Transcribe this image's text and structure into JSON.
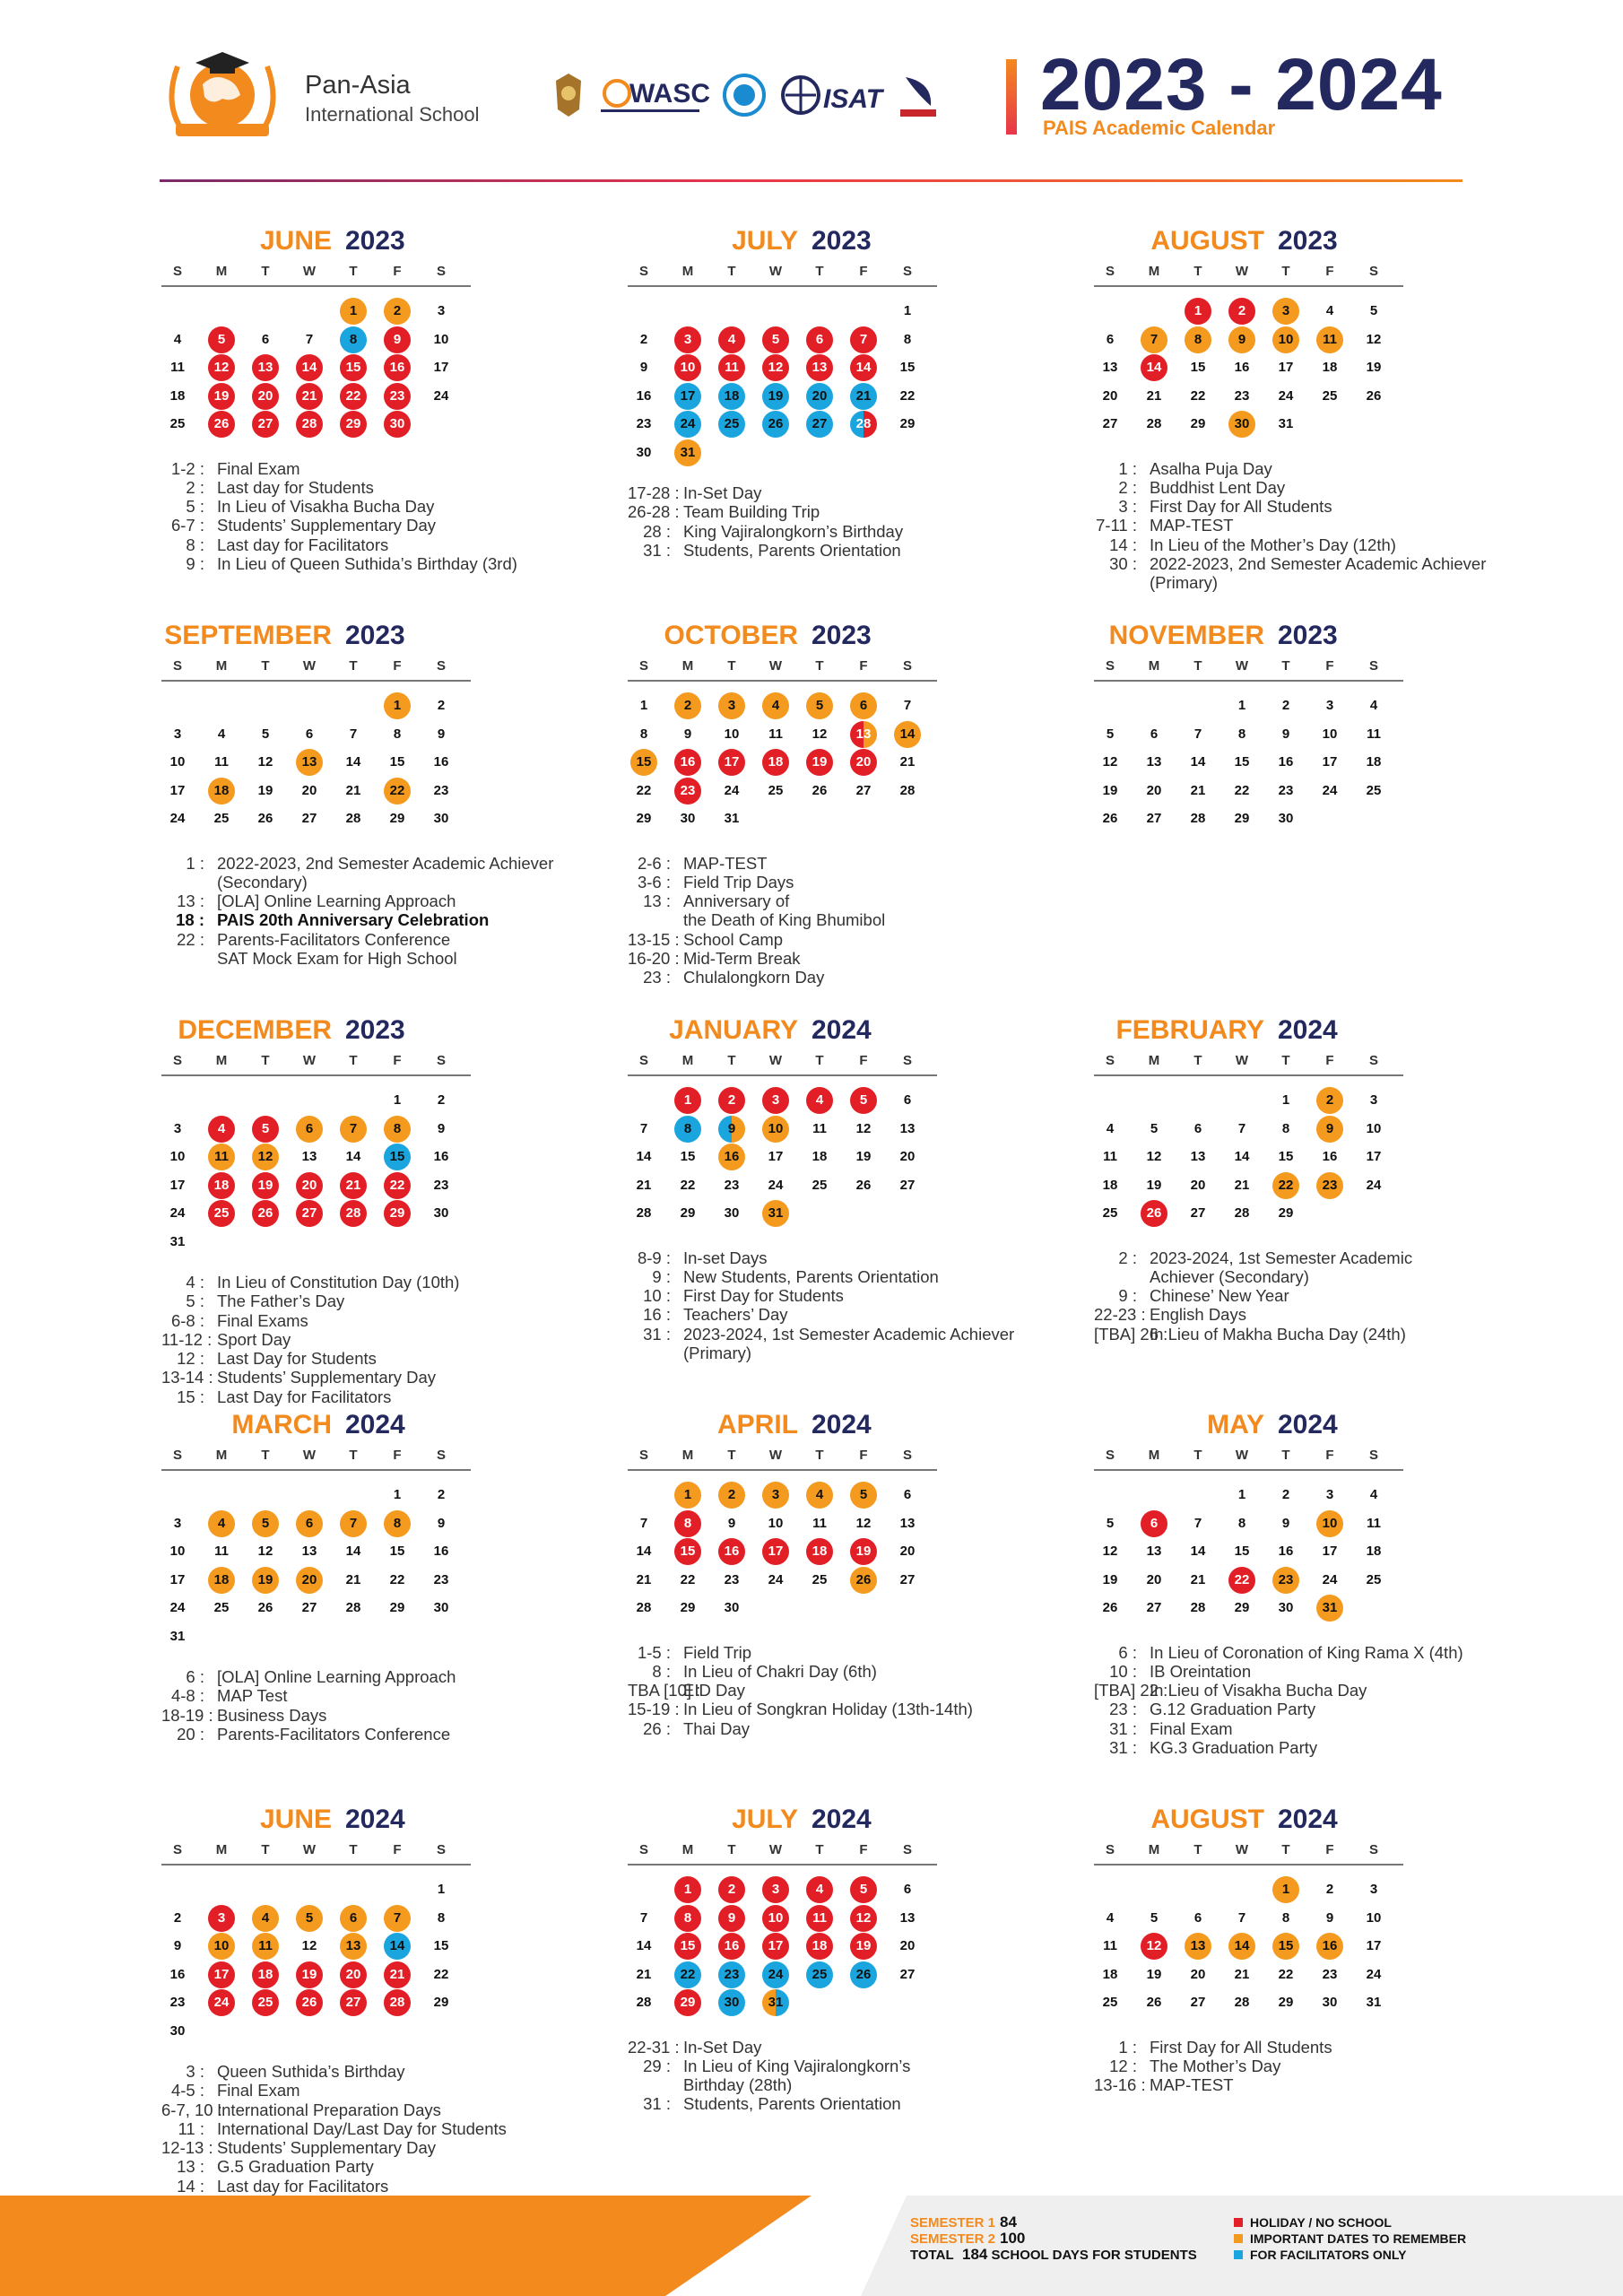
{
  "header": {
    "school_name_line1": "Pan-Asia",
    "school_name_line2": "International School",
    "logo_icon": "globe-with-mortarboard-and-laurel",
    "accreditation_labels": [
      "WASC",
      "ISAT"
    ],
    "title_year": "2023 - 2024",
    "subtitle": "PAIS Academic Calendar"
  },
  "weekday_labels": [
    "S",
    "M",
    "T",
    "W",
    "T",
    "F",
    "S"
  ],
  "colors": {
    "holiday": "#e21f26",
    "important": "#f49a1e",
    "facilitators": "#1aa5df",
    "navy": "#23285f",
    "orange": "#f28a1e"
  },
  "months": [
    {
      "name": "JUNE",
      "year": "2023",
      "start": 4,
      "days": 30,
      "six_rows": false,
      "marks": {
        "1": "o",
        "2": "o",
        "5": "r",
        "8": "b",
        "9": "r",
        "12": "r",
        "13": "r",
        "14": "r",
        "15": "r",
        "16": "r",
        "19": "r",
        "20": "r",
        "21": "r",
        "22": "r",
        "23": "r",
        "26": "r",
        "27": "r",
        "28": "r",
        "29": "r",
        "30": "r"
      },
      "notes": [
        {
          "d": "1-2 :",
          "t": "Final Exam"
        },
        {
          "d": "2 :",
          "t": "Last day for Students"
        },
        {
          "d": "5 :",
          "t": "In Lieu of Visakha Bucha Day"
        },
        {
          "d": "6-7 :",
          "t": "Students’ Supplementary Day"
        },
        {
          "d": "8 :",
          "t": "Last day for Facilitators"
        },
        {
          "d": "9 :",
          "t": "In Lieu of Queen Suthida’s Birthday (3rd)"
        }
      ]
    },
    {
      "name": "JULY",
      "year": "2023",
      "start": 6,
      "days": 31,
      "six_rows": true,
      "marks": {
        "3": "r",
        "4": "r",
        "5": "r",
        "6": "r",
        "7": "r",
        "10": "r",
        "11": "r",
        "12": "r",
        "13": "r",
        "14": "r",
        "17": "b",
        "18": "b",
        "19": "b",
        "20": "b",
        "21": "b",
        "24": "b",
        "25": "b",
        "26": "b",
        "27": "b",
        "28": "rb",
        "31": "o"
      },
      "notes": [
        {
          "d": "17-28 :",
          "t": "In-Set Day"
        },
        {
          "d": "26-28 :",
          "t": "Team Building Trip"
        },
        {
          "d": "28 :",
          "t": "King Vajiralongkorn’s Birthday"
        },
        {
          "d": "31 :",
          "t": "Students, Parents Orientation"
        }
      ]
    },
    {
      "name": "AUGUST",
      "year": "2023",
      "start": 2,
      "days": 31,
      "six_rows": false,
      "marks": {
        "1": "r",
        "2": "r",
        "3": "o",
        "7": "o",
        "8": "o",
        "9": "o",
        "10": "o",
        "11": "o",
        "14": "r",
        "30": "o"
      },
      "notes": [
        {
          "d": "1 :",
          "t": "Asalha Puja Day"
        },
        {
          "d": "2 :",
          "t": "Buddhist Lent Day"
        },
        {
          "d": "3 :",
          "t": "First Day for All Students"
        },
        {
          "d": "7-11 :",
          "t": "MAP-TEST"
        },
        {
          "d": "14 :",
          "t": "In Lieu of the Mother’s Day (12th)"
        },
        {
          "d": "30 :",
          "t": "2022-2023, 2nd Semester Academic Achiever"
        },
        {
          "d": "",
          "t": "(Primary)"
        }
      ]
    },
    {
      "name": "SEPTEMBER",
      "year": "2023",
      "start": 5,
      "days": 30,
      "six_rows": false,
      "marks": {
        "1": "o",
        "13": "o",
        "18": "o",
        "22": "o"
      },
      "notes": [
        {
          "d": "1 :",
          "t": "2022-2023, 2nd Semester Academic Achiever"
        },
        {
          "d": "",
          "t": "(Secondary)"
        },
        {
          "d": "13 :",
          "t": "[OLA] Online Learning Approach"
        },
        {
          "d": "18 :",
          "t": "PAIS 20th Anniversary Celebration",
          "b": true
        },
        {
          "d": "22 :",
          "t": "Parents-Facilitators Conference"
        },
        {
          "d": "",
          "t": "SAT Mock Exam for High School"
        }
      ]
    },
    {
      "name": "OCTOBER",
      "year": "2023",
      "start": 0,
      "days": 31,
      "six_rows": false,
      "marks": {
        "2": "o",
        "3": "o",
        "4": "o",
        "5": "o",
        "6": "o",
        "13": "ro",
        "14": "o",
        "15": "o",
        "16": "r",
        "17": "r",
        "18": "r",
        "19": "r",
        "20": "r",
        "23": "r"
      },
      "notes": [
        {
          "d": "2-6 :",
          "t": "MAP-TEST"
        },
        {
          "d": "3-6 :",
          "t": "Field Trip Days"
        },
        {
          "d": "13 :",
          "t": "Anniversary of"
        },
        {
          "d": "",
          "t": "the Death of King Bhumibol"
        },
        {
          "d": "13-15 :",
          "t": "School Camp"
        },
        {
          "d": "16-20 :",
          "t": "Mid-Term Break"
        },
        {
          "d": "23 :",
          "t": "Chulalongkorn Day"
        }
      ]
    },
    {
      "name": "NOVEMBER",
      "year": "2023",
      "start": 3,
      "days": 30,
      "six_rows": false,
      "marks": {},
      "notes": []
    },
    {
      "name": "DECEMBER",
      "year": "2023",
      "start": 5,
      "days": 31,
      "six_rows": true,
      "marks": {
        "4": "r",
        "5": "r",
        "6": "o",
        "7": "o",
        "8": "o",
        "11": "o",
        "12": "o",
        "15": "b",
        "18": "r",
        "19": "r",
        "20": "r",
        "21": "r",
        "22": "r",
        "25": "r",
        "26": "r",
        "27": "r",
        "28": "r",
        "29": "r"
      },
      "notes": [
        {
          "d": "4 :",
          "t": "In Lieu of Constitution Day (10th)"
        },
        {
          "d": "5 :",
          "t": "The Father’s Day"
        },
        {
          "d": "6-8 :",
          "t": "Final Exams"
        },
        {
          "d": "11-12 :",
          "t": "Sport Day"
        },
        {
          "d": "12 :",
          "t": "Last Day for Students"
        },
        {
          "d": "13-14 :",
          "t": "Students’ Supplementary Day"
        },
        {
          "d": "15 :",
          "t": "Last Day for Facilitators"
        }
      ]
    },
    {
      "name": "JANUARY",
      "year": "2024",
      "start": 1,
      "days": 31,
      "six_rows": false,
      "marks": {
        "1": "r",
        "2": "r",
        "3": "r",
        "4": "r",
        "5": "r",
        "8": "b",
        "9": "bo",
        "10": "o",
        "16": "o",
        "31": "o"
      },
      "notes": [
        {
          "d": "8-9 :",
          "t": "In-set Days"
        },
        {
          "d": "9 :",
          "t": "New Students, Parents Orientation"
        },
        {
          "d": "10 :",
          "t": "First Day for Students"
        },
        {
          "d": "16 :",
          "t": "Teachers’ Day"
        },
        {
          "d": "31 :",
          "t": "2023-2024, 1st Semester Academic Achiever"
        },
        {
          "d": "",
          "t": "(Primary)"
        }
      ]
    },
    {
      "name": "FEBRUARY",
      "year": "2024",
      "start": 4,
      "days": 29,
      "six_rows": false,
      "marks": {
        "2": "o",
        "9": "o",
        "22": "o",
        "23": "o",
        "26": "r"
      },
      "notes": [
        {
          "d": "2 :",
          "t": "2023-2024, 1st Semester Academic"
        },
        {
          "d": "",
          "t": "Achiever (Secondary)"
        },
        {
          "d": "9 :",
          "t": "Chinese’ New Year"
        },
        {
          "d": "22-23 :",
          "t": "English Days"
        },
        {
          "d": "[TBA] 26 :",
          "t": "In Lieu of Makha Bucha Day (24th)"
        }
      ]
    },
    {
      "name": "MARCH",
      "year": "2024",
      "start": 5,
      "days": 31,
      "six_rows": true,
      "marks": {
        "4": "o",
        "5": "o",
        "6": "o",
        "7": "o",
        "8": "o",
        "18": "o",
        "19": "o",
        "20": "o"
      },
      "notes": [
        {
          "d": "6 :",
          "t": "[OLA] Online Learning Approach"
        },
        {
          "d": "4-8 :",
          "t": "MAP Test"
        },
        {
          "d": "18-19 :",
          "t": "Business Days"
        },
        {
          "d": "20 :",
          "t": "Parents-Facilitators Conference"
        }
      ]
    },
    {
      "name": "APRIL",
      "year": "2024",
      "start": 1,
      "days": 30,
      "six_rows": false,
      "marks": {
        "1": "o",
        "2": "o",
        "3": "o",
        "4": "o",
        "5": "o",
        "8": "r",
        "15": "r",
        "16": "r",
        "17": "r",
        "18": "r",
        "19": "r",
        "26": "o"
      },
      "notes": [
        {
          "d": "1-5 :",
          "t": "Field Trip"
        },
        {
          "d": "8 :",
          "t": "In Lieu of Chakri Day (6th)"
        },
        {
          "d": "TBA [10] :",
          "t": "EID Day"
        },
        {
          "d": "15-19 :",
          "t": "In Lieu of Songkran Holiday (13th-14th)"
        },
        {
          "d": "26 :",
          "t": "Thai Day"
        }
      ]
    },
    {
      "name": "MAY",
      "year": "2024",
      "start": 3,
      "days": 31,
      "six_rows": false,
      "marks": {
        "6": "r",
        "10": "o",
        "22": "r",
        "23": "o",
        "31": "o"
      },
      "notes": [
        {
          "d": "6 :",
          "t": "In Lieu of Coronation of King Rama X (4th)"
        },
        {
          "d": "10 :",
          "t": "IB Oreintation"
        },
        {
          "d": "[TBA] 22 :",
          "t": "In Lieu of Visakha Bucha Day"
        },
        {
          "d": "23 :",
          "t": "G.12 Graduation Party"
        },
        {
          "d": "31 :",
          "t": "Final Exam"
        },
        {
          "d": "31 :",
          "t": "KG.3 Graduation Party"
        }
      ]
    },
    {
      "name": "JUNE",
      "year": "2024",
      "start": 6,
      "days": 30,
      "six_rows": true,
      "marks": {
        "3": "r",
        "4": "o",
        "5": "o",
        "6": "o",
        "7": "o",
        "10": "o",
        "11": "o",
        "13": "o",
        "14": "b",
        "17": "r",
        "18": "r",
        "19": "r",
        "20": "r",
        "21": "r",
        "24": "r",
        "25": "r",
        "26": "r",
        "27": "r",
        "28": "r"
      },
      "notes": [
        {
          "d": "3 :",
          "t": "Queen Suthida’s Birthday"
        },
        {
          "d": "4-5 :",
          "t": "Final Exam"
        },
        {
          "d": "6-7, 10 :",
          "t": "International Preparation Days"
        },
        {
          "d": "11 :",
          "t": "International Day/Last Day for Students"
        },
        {
          "d": "12-13 :",
          "t": "Students’ Supplementary Day"
        },
        {
          "d": "13 :",
          "t": "G.5 Graduation Party"
        },
        {
          "d": "14 :",
          "t": "Last day for Facilitators"
        }
      ]
    },
    {
      "name": "JULY",
      "year": "2024",
      "start": 1,
      "days": 31,
      "six_rows": false,
      "marks": {
        "1": "r",
        "2": "r",
        "3": "r",
        "4": "r",
        "5": "r",
        "8": "r",
        "9": "r",
        "10": "r",
        "11": "r",
        "12": "r",
        "15": "r",
        "16": "r",
        "17": "r",
        "18": "r",
        "19": "r",
        "22": "b",
        "23": "b",
        "24": "b",
        "25": "b",
        "26": "b",
        "29": "r",
        "30": "b",
        "31": "ob"
      },
      "notes": [
        {
          "d": "22-31 :",
          "t": "In-Set Day"
        },
        {
          "d": "29 :",
          "t": "In Lieu of King Vajiralongkorn’s"
        },
        {
          "d": "",
          "t": "Birthday (28th)"
        },
        {
          "d": "31 :",
          "t": "Students, Parents Orientation"
        }
      ]
    },
    {
      "name": "AUGUST",
      "year": "2024",
      "start": 4,
      "days": 31,
      "six_rows": false,
      "marks": {
        "1": "o",
        "12": "r",
        "13": "o",
        "14": "o",
        "15": "o",
        "16": "o"
      },
      "notes": [
        {
          "d": "1 :",
          "t": "First Day for All Students"
        },
        {
          "d": "12 :",
          "t": "The Mother’s Day"
        },
        {
          "d": "13-16 :",
          "t": "MAP-TEST"
        }
      ]
    }
  ],
  "footer": {
    "semester1_label": "SEMESTER 1",
    "semester1_days": "84",
    "semester2_label": "SEMESTER 2",
    "semester2_days": "100",
    "total_label": "TOTAL",
    "total_days": "184",
    "total_suffix": "SCHOOL DAYS FOR STUDENTS",
    "legend_holiday": "HOLIDAY / NO SCHOOL",
    "legend_important": "IMPORTANT DATES TO REMEMBER",
    "legend_facilitators": "FOR FACILITATORS ONLY"
  }
}
